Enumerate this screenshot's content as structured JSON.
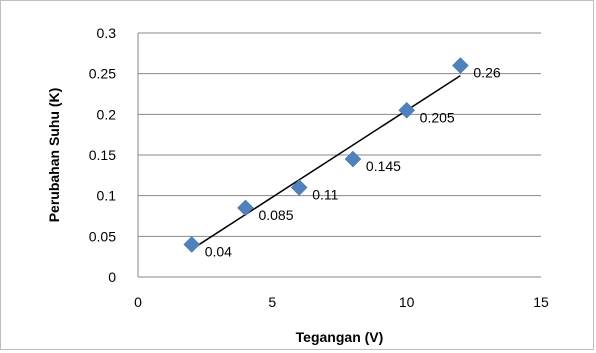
{
  "chart_data": {
    "type": "scatter",
    "title": "",
    "xlabel": "Tegangan (V)",
    "ylabel": "Perubahan Suhu (K)",
    "xlim": [
      0,
      15
    ],
    "ylim": [
      0,
      0.3
    ],
    "xticks": [
      "0",
      "5",
      "10",
      "15"
    ],
    "xtick_values": [
      0,
      5,
      10,
      15
    ],
    "yticks": [
      "0",
      "0.05",
      "0.1",
      "0.15",
      "0.2",
      "0.25",
      "0.3"
    ],
    "ytick_values": [
      0,
      0.05,
      0.1,
      0.15,
      0.2,
      0.25,
      0.3
    ],
    "grid": "horizontal",
    "legend": "none",
    "marker": "diamond",
    "series": [
      {
        "x": [
          2,
          4,
          6,
          8,
          10,
          12
        ],
        "y": [
          0.04,
          0.085,
          0.11,
          0.145,
          0.205,
          0.26
        ],
        "labels": [
          "0.04",
          "0.085",
          "0.11",
          "0.145",
          "0.205",
          "0.26"
        ],
        "color": "#4f81bd"
      }
    ],
    "trendline": {
      "type": "linear",
      "color": "#000000"
    }
  }
}
